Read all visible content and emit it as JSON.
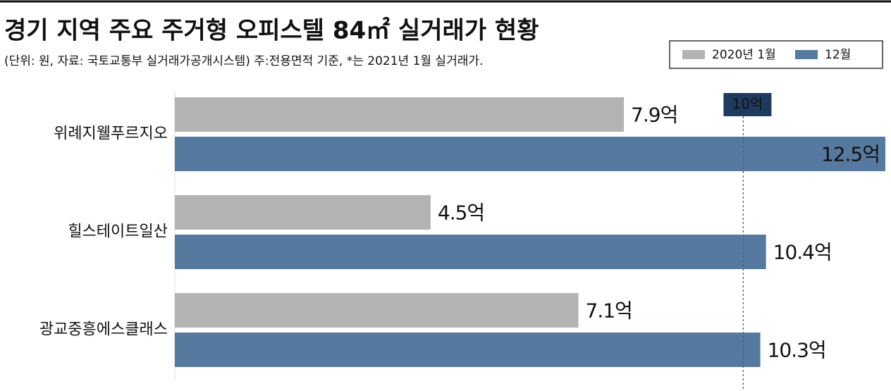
{
  "chart_data": {
    "type": "bar",
    "orientation": "horizontal",
    "title": "경기 지역 주요 주거형 오피스텔 84㎡ 실거래가 현황",
    "subtitle": "(단위: 원, 자료: 국토교통부 실거래가공개시스템) 주:전용면적 기준, *는 2021년 1월 실거래가.",
    "categories": [
      "위례지웰푸르지오",
      "힐스테이트일산",
      "광교중흥에스클래스"
    ],
    "series": [
      {
        "name": "2020년 1월",
        "color": "#b3b3b3",
        "values": [
          7.9,
          4.5,
          7.1
        ],
        "value_labels": [
          "7.9억",
          "4.5억",
          "7.1억"
        ]
      },
      {
        "name": "12월",
        "color": "#56799f",
        "values": [
          12.5,
          10.4,
          10.3
        ],
        "value_labels": [
          "12.5억",
          "10.4억",
          "10.3억"
        ]
      }
    ],
    "xlim": [
      0,
      12.5
    ],
    "reference_line": {
      "value": 10,
      "label": "10억",
      "color": "#1f3a5f"
    }
  }
}
